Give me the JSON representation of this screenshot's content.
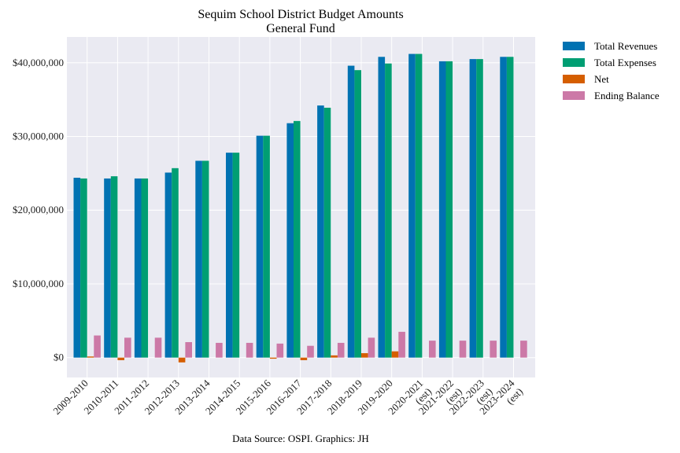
{
  "chart_data": {
    "type": "bar",
    "title": "Sequim School District Budget Amounts",
    "subtitle": "General Fund",
    "xlabel": "",
    "ylabel": "",
    "source": "Data Source: OSPI. Graphics: JH",
    "ylim": [
      -2700000,
      43500000
    ],
    "yticks": [
      0,
      10000000,
      20000000,
      30000000,
      40000000
    ],
    "ytick_labels": [
      "$0",
      "$10,000,000",
      "$20,000,000",
      "$30,000,000",
      "$40,000,000"
    ],
    "grid": true,
    "legend_position": "outside-top-right",
    "categories": [
      "2009-2010",
      "2010-2011",
      "2011-2012",
      "2012-2013",
      "2013-2014",
      "2014-2015",
      "2015-2016",
      "2016-2017",
      "2017-2018",
      "2018-2019",
      "2019-2020",
      "2020-2021 (est)",
      "2021-2022 (est)",
      "2022-2023 (est)",
      "2023-2024 (est)"
    ],
    "series": [
      {
        "name": "Total Revenues",
        "color": "#0072b2",
        "values": [
          24400000,
          24300000,
          24300000,
          25100000,
          26700000,
          27800000,
          30100000,
          31800000,
          34200000,
          39600000,
          40800000,
          41200000,
          40200000,
          40500000,
          40800000
        ]
      },
      {
        "name": "Total Expenses",
        "color": "#009e73",
        "values": [
          24300000,
          24600000,
          24300000,
          25700000,
          26700000,
          27800000,
          30100000,
          32100000,
          33900000,
          39000000,
          39900000,
          41200000,
          40200000,
          40500000,
          40800000
        ]
      },
      {
        "name": "Net",
        "color": "#d55e00",
        "values": [
          150000,
          -350000,
          0,
          -650000,
          0,
          0,
          -150000,
          -350000,
          300000,
          600000,
          850000,
          0,
          0,
          0,
          0
        ]
      },
      {
        "name": "Ending Balance",
        "color": "#cc79a7",
        "values": [
          3000000,
          2700000,
          2700000,
          2100000,
          2000000,
          2000000,
          1900000,
          1600000,
          2000000,
          2700000,
          3500000,
          2300000,
          2300000,
          2300000,
          2300000
        ]
      }
    ]
  }
}
